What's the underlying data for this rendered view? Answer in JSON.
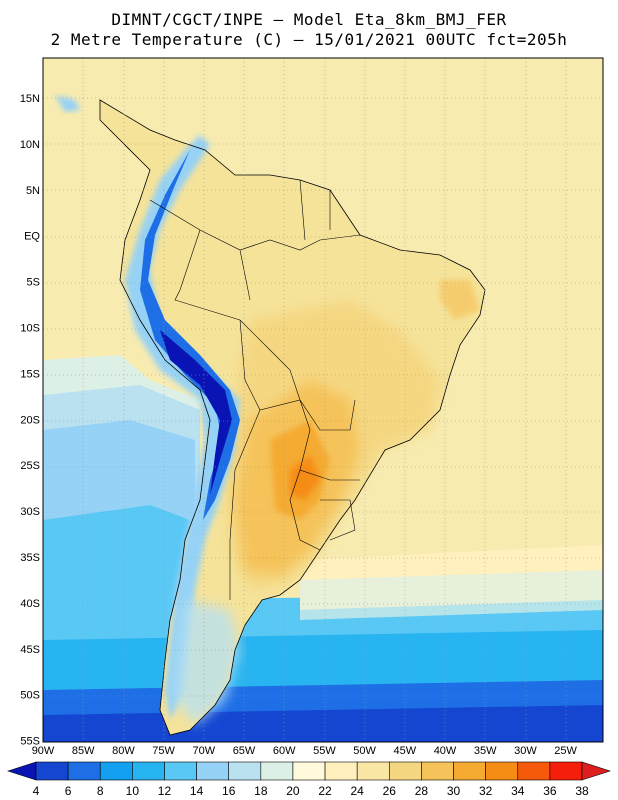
{
  "title": {
    "line1": "DIMNT/CGCT/INPE –  Model Eta_8km_BMJ_FER",
    "line2": "2 Metre Temperature (C) –  15/01/2021 00UTC fct=205h"
  },
  "map": {
    "region": "South America",
    "variable": "2 Metre Temperature (C)",
    "lat_ticks": [
      "15N",
      "10N",
      "5N",
      "EQ",
      "5S",
      "10S",
      "15S",
      "20S",
      "25S",
      "30S",
      "35S",
      "40S",
      "45S",
      "50S",
      "55S"
    ],
    "lon_ticks": [
      "90W",
      "85W",
      "80W",
      "75W",
      "70W",
      "65W",
      "60W",
      "55W",
      "50W",
      "45W",
      "40W",
      "35W",
      "30W",
      "25W"
    ]
  },
  "colorbar": {
    "labels": [
      "4",
      "6",
      "8",
      "10",
      "12",
      "14",
      "16",
      "18",
      "20",
      "22",
      "24",
      "26",
      "28",
      "30",
      "32",
      "34",
      "36",
      "38"
    ],
    "colors": [
      "#0a14b4",
      "#1446d2",
      "#1e6ee6",
      "#14a0f0",
      "#28b4f0",
      "#5ac8f5",
      "#96d2f5",
      "#b9e1f0",
      "#dcf0e6",
      "#fffadc",
      "#fff0be",
      "#fae6a5",
      "#f5d782",
      "#f5c35a",
      "#f5aa32",
      "#f58c14",
      "#f55a0a",
      "#f51e0a",
      "#dc1e1e"
    ]
  }
}
